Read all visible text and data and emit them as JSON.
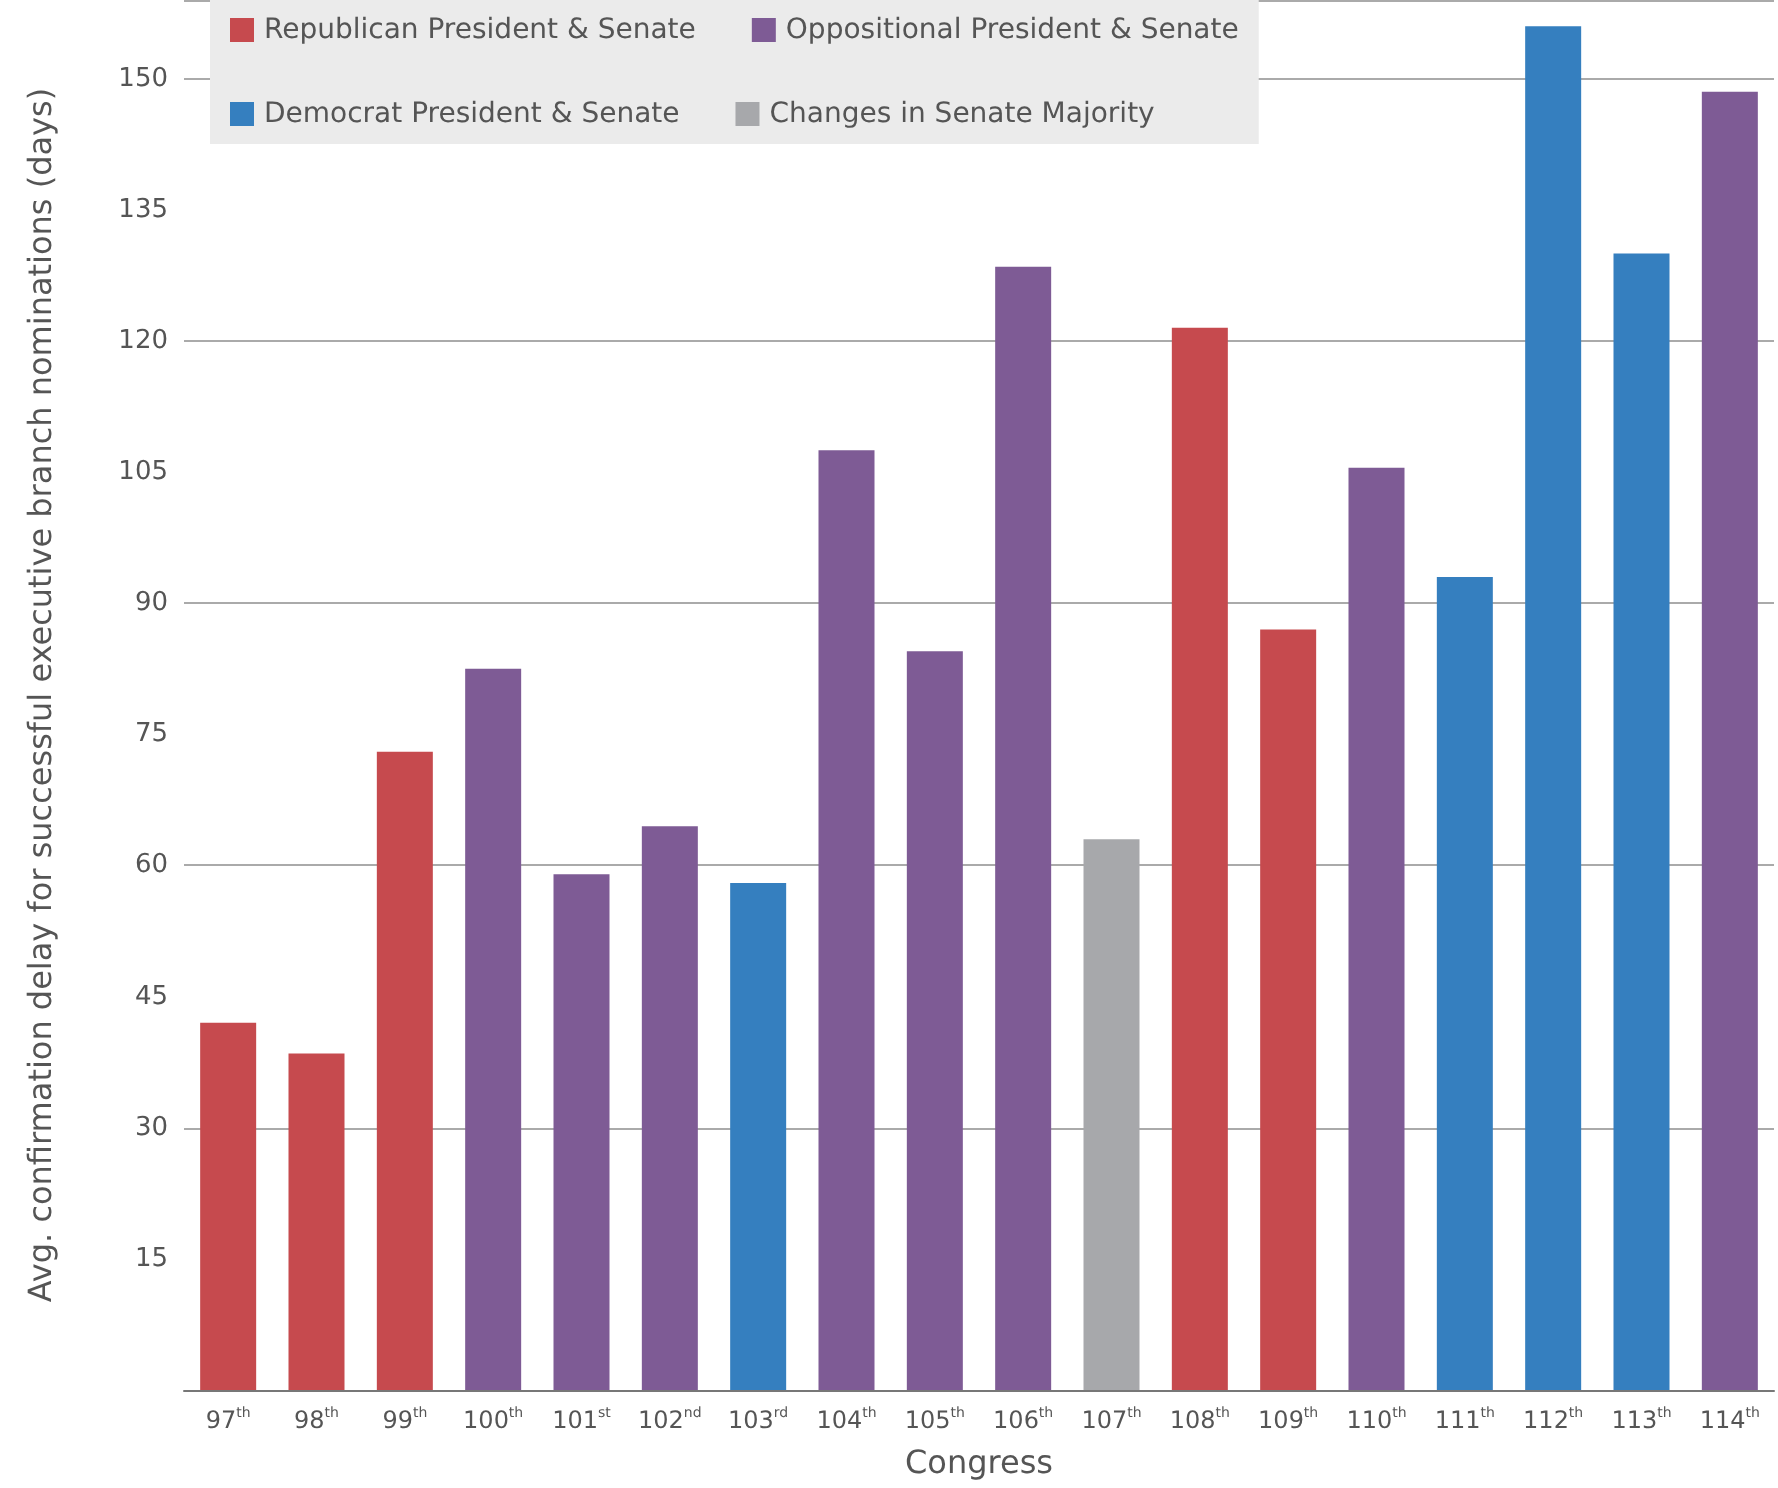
{
  "chart_data": {
    "type": "bar",
    "xlabel": "Congress",
    "ylabel": "Avg. confirmation delay for successful executive branch nominations (days)",
    "categories": [
      "97$^{th}$",
      "98$^{th}$",
      "99$^{th}$",
      "100$^{th}$",
      "101$^{st}$",
      "102$^{nd}$",
      "103$^{rd}$",
      "104$^{th}$",
      "105$^{th}$",
      "106$^{th}$",
      "107$^{th}$",
      "108$^{th}$",
      "109$^{th}$",
      "110$^{th}$",
      "111$^{th}$",
      "112$^{th}$",
      "113$^{th}$",
      "114$^{th}$"
    ],
    "series": [
      {
        "name": "Republican President & Senate",
        "color": "#c64a4e",
        "values": [
          42,
          38.5,
          73,
          null,
          null,
          null,
          null,
          null,
          null,
          null,
          null,
          121.5,
          87,
          null,
          null,
          null,
          null,
          null
        ]
      },
      {
        "name": "Oppositional President & Senate",
        "color": "#7e5b95",
        "values": [
          null,
          null,
          null,
          82.5,
          59,
          64.5,
          null,
          107.5,
          84.5,
          128.5,
          null,
          null,
          null,
          105.5,
          null,
          null,
          null,
          148.5
        ]
      },
      {
        "name": "Democrat President & Senate",
        "color": "#357fbf",
        "values": [
          null,
          null,
          null,
          null,
          null,
          null,
          58,
          null,
          null,
          null,
          null,
          null,
          null,
          null,
          93,
          156,
          130,
          null
        ]
      },
      {
        "name": "Changes in Senate Majority",
        "color": "#a7a8ab",
        "values": [
          null,
          null,
          null,
          null,
          null,
          null,
          null,
          null,
          null,
          null,
          63,
          null,
          null,
          null,
          null,
          null,
          null,
          null
        ]
      }
    ],
    "ylim": [
      0,
      159
    ],
    "yticks": [
      15,
      30,
      45,
      60,
      75,
      90,
      105,
      120,
      135,
      150
    ],
    "grid": "y",
    "legend": "top left"
  }
}
